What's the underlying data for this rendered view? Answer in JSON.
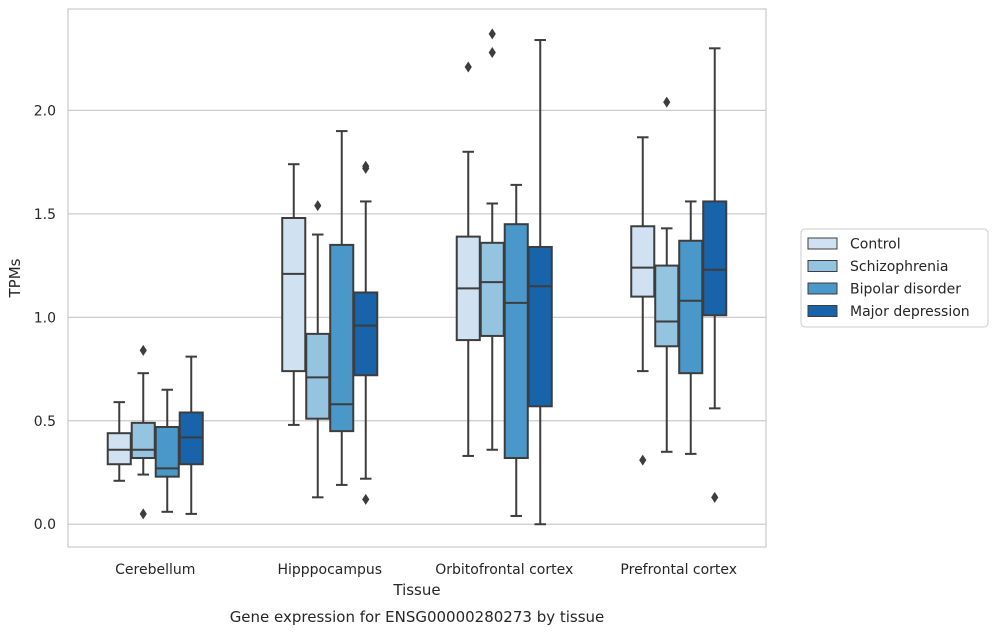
{
  "caption": "Gene expression for ENSG00000280273 by tissue",
  "chart_data": {
    "type": "box",
    "xlabel": "Tissue",
    "ylabel": "TPMs",
    "ylim": [
      -0.11,
      2.49
    ],
    "yticks": [
      0.0,
      0.5,
      1.0,
      1.5,
      2.0
    ],
    "ytick_labels": [
      "0.0",
      "0.5",
      "1.0",
      "1.5",
      "2.0"
    ],
    "grid": "horizontal",
    "legend_position": "right",
    "categories": [
      "Cerebellum",
      "Hipppocampus",
      "Orbitofrontal cortex",
      "Prefrontal cortex"
    ],
    "series": [
      {
        "name": "Control",
        "color": "#d0e1f2",
        "boxes": [
          {
            "whislo": 0.21,
            "q1": 0.29,
            "med": 0.36,
            "q3": 0.44,
            "whishi": 0.59,
            "fliers": []
          },
          {
            "whislo": 0.48,
            "q1": 0.74,
            "med": 1.21,
            "q3": 1.48,
            "whishi": 1.74,
            "fliers": []
          },
          {
            "whislo": 0.33,
            "q1": 0.89,
            "med": 1.14,
            "q3": 1.39,
            "whishi": 1.8,
            "fliers": [
              2.21
            ]
          },
          {
            "whislo": 0.74,
            "q1": 1.1,
            "med": 1.24,
            "q3": 1.44,
            "whishi": 1.87,
            "fliers": [
              0.31
            ]
          }
        ]
      },
      {
        "name": "Schizophrenia",
        "color": "#94c4df",
        "boxes": [
          {
            "whislo": 0.24,
            "q1": 0.32,
            "med": 0.36,
            "q3": 0.49,
            "whishi": 0.73,
            "fliers": [
              0.84,
              0.05
            ]
          },
          {
            "whislo": 0.13,
            "q1": 0.51,
            "med": 0.71,
            "q3": 0.92,
            "whishi": 1.4,
            "fliers": [
              1.54
            ]
          },
          {
            "whislo": 0.36,
            "q1": 0.91,
            "med": 1.17,
            "q3": 1.36,
            "whishi": 1.55,
            "fliers": [
              2.37,
              2.28
            ]
          },
          {
            "whislo": 0.35,
            "q1": 0.86,
            "med": 0.98,
            "q3": 1.25,
            "whishi": 1.43,
            "fliers": [
              2.04
            ]
          }
        ]
      },
      {
        "name": "Bipolar disorder",
        "color": "#4a98c9",
        "boxes": [
          {
            "whislo": 0.06,
            "q1": 0.23,
            "med": 0.27,
            "q3": 0.47,
            "whishi": 0.65,
            "fliers": []
          },
          {
            "whislo": 0.19,
            "q1": 0.45,
            "med": 0.58,
            "q3": 1.35,
            "whishi": 1.9,
            "fliers": []
          },
          {
            "whislo": 0.04,
            "q1": 0.32,
            "med": 1.07,
            "q3": 1.45,
            "whishi": 1.64,
            "fliers": []
          },
          {
            "whislo": 0.34,
            "q1": 0.73,
            "med": 1.08,
            "q3": 1.37,
            "whishi": 1.56,
            "fliers": []
          }
        ]
      },
      {
        "name": "Major depression",
        "color": "#1764ab",
        "boxes": [
          {
            "whislo": 0.05,
            "q1": 0.29,
            "med": 0.42,
            "q3": 0.54,
            "whishi": 0.81,
            "fliers": []
          },
          {
            "whislo": 0.22,
            "q1": 0.72,
            "med": 0.96,
            "q3": 1.12,
            "whishi": 1.56,
            "fliers": [
              1.73,
              1.72,
              0.12
            ]
          },
          {
            "whislo": 0.0,
            "q1": 0.57,
            "med": 1.15,
            "q3": 1.34,
            "whishi": 2.34,
            "fliers": []
          },
          {
            "whislo": 0.56,
            "q1": 1.01,
            "med": 1.23,
            "q3": 1.56,
            "whishi": 2.3,
            "fliers": [
              0.13
            ]
          }
        ]
      }
    ]
  }
}
